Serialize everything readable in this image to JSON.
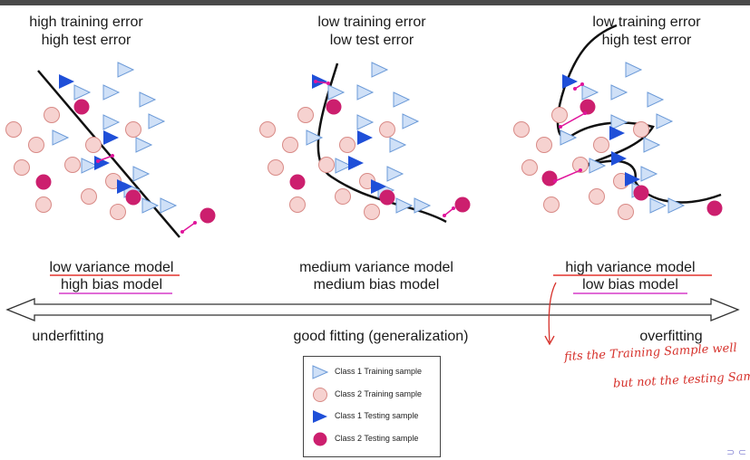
{
  "panels": [
    {
      "title_line1": "high training error",
      "title_line2": "high test error",
      "model_line1": "low variance model",
      "model_line2": "high bias model",
      "fit_label": "underfitting"
    },
    {
      "title_line1": "low training error",
      "title_line2": "low test error",
      "model_line1": "medium variance model",
      "model_line2": "medium bias model",
      "fit_label": "good fitting (generalization)"
    },
    {
      "title_line1": "low training error",
      "title_line2": "high test error",
      "model_line1": "high variance model",
      "model_line2": "low bias model",
      "fit_label": "overfitting"
    }
  ],
  "annotation": {
    "line1": "fits the Training Sample well",
    "line2": "but not the testing Sample"
  },
  "legend": [
    {
      "label": "Class 1 Training sample",
      "icon": "triangle-outline-icon"
    },
    {
      "label": "Class 2 Training sample",
      "icon": "circle-outline-icon"
    },
    {
      "label": "Class 1 Testing sample",
      "icon": "triangle-filled-icon"
    },
    {
      "label": "Class 2 Testing sample",
      "icon": "circle-filled-icon"
    }
  ],
  "colors": {
    "class1_train": "#cfe0f7",
    "class1_train_stroke": "#6d9bd8",
    "class2_train": "#f6d2d0",
    "class2_train_stroke": "#d88a86",
    "class1_test": "#1f4fd8",
    "class2_test": "#cc1f6e",
    "error_link": "#e0159b",
    "underline_red": "#e3342f",
    "underline_magenta": "#d63ac9"
  }
}
